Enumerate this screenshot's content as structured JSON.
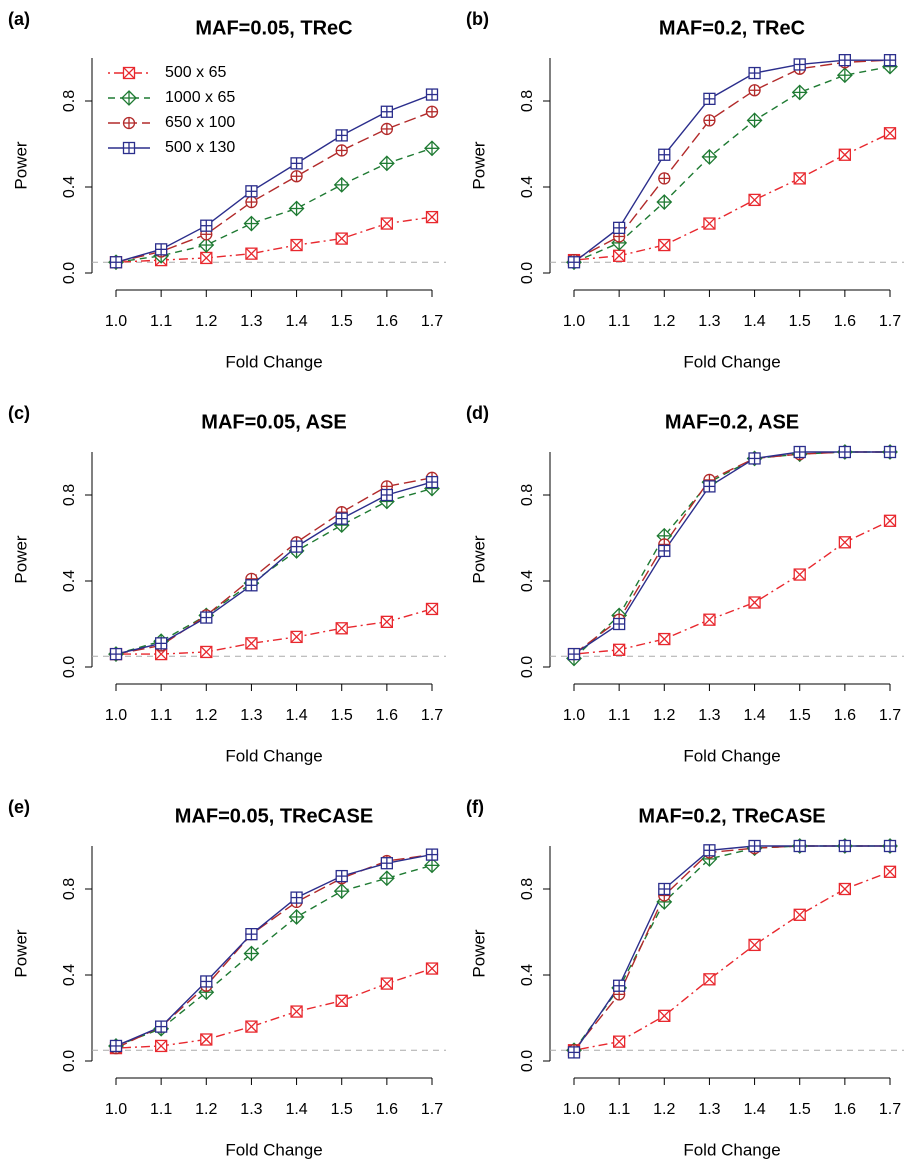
{
  "chart_data": [
    {
      "type": "line",
      "label": "(a)",
      "title": "MAF=0.05, TReC",
      "xlabel": "Fold Change",
      "ylabel": "Power",
      "x": [
        1.0,
        1.1,
        1.2,
        1.3,
        1.4,
        1.5,
        1.6,
        1.7
      ],
      "xlim": [
        1.0,
        1.7
      ],
      "xticks": [
        {
          "value": 1.0,
          "label": "1.0"
        },
        1.1,
        1.2,
        1.3,
        1.4,
        1.5,
        1.6,
        1.7
      ],
      "ylim": [
        0,
        1
      ],
      "yticks": [
        {
          "value": 0,
          "label": "0.0"
        },
        0.4,
        0.8
      ],
      "reference_line": 0.05,
      "legend": "top-left",
      "series": [
        {
          "name": "500 x 65",
          "color": "#e8282e",
          "linestyle": "dotdash",
          "marker": "square-x",
          "values": [
            0.05,
            0.06,
            0.07,
            0.09,
            0.13,
            0.16,
            0.23,
            0.26
          ]
        },
        {
          "name": "1000 x 65",
          "color": "#1e7a32",
          "linestyle": "dashed",
          "marker": "diamond-plus",
          "values": [
            0.05,
            0.08,
            0.13,
            0.23,
            0.3,
            0.41,
            0.51,
            0.58
          ]
        },
        {
          "name": "650 x 100",
          "color": "#b22a2a",
          "linestyle": "longdash",
          "marker": "circle-plus",
          "values": [
            0.05,
            0.1,
            0.18,
            0.33,
            0.45,
            0.57,
            0.67,
            0.75
          ]
        },
        {
          "name": "500 x 130",
          "color": "#2b2e8c",
          "linestyle": "solid",
          "marker": "square-plus",
          "values": [
            0.05,
            0.11,
            0.22,
            0.38,
            0.51,
            0.64,
            0.75,
            0.83
          ]
        }
      ]
    },
    {
      "type": "line",
      "label": "(b)",
      "title": "MAF=0.2, TReC",
      "xlabel": "Fold Change",
      "ylabel": "Power",
      "x": [
        1.0,
        1.1,
        1.2,
        1.3,
        1.4,
        1.5,
        1.6,
        1.7
      ],
      "xlim": [
        1.0,
        1.7
      ],
      "xticks": [
        {
          "value": 1.0,
          "label": "1.0"
        },
        1.1,
        1.2,
        1.3,
        1.4,
        1.5,
        1.6,
        1.7
      ],
      "ylim": [
        0,
        1
      ],
      "yticks": [
        {
          "value": 0,
          "label": "0.0"
        },
        0.4,
        0.8
      ],
      "reference_line": 0.05,
      "series": [
        {
          "name": "500 x 65",
          "color": "#e8282e",
          "linestyle": "dotdash",
          "marker": "square-x",
          "values": [
            0.06,
            0.08,
            0.13,
            0.23,
            0.34,
            0.44,
            0.55,
            0.65
          ]
        },
        {
          "name": "1000 x 65",
          "color": "#1e7a32",
          "linestyle": "dashed",
          "marker": "diamond-plus",
          "values": [
            0.05,
            0.14,
            0.33,
            0.54,
            0.71,
            0.84,
            0.92,
            0.96
          ]
        },
        {
          "name": "650 x 100",
          "color": "#b22a2a",
          "linestyle": "longdash",
          "marker": "circle-plus",
          "values": [
            0.06,
            0.17,
            0.44,
            0.71,
            0.85,
            0.95,
            0.98,
            0.99
          ]
        },
        {
          "name": "500 x 130",
          "color": "#2b2e8c",
          "linestyle": "solid",
          "marker": "square-plus",
          "values": [
            0.05,
            0.21,
            0.55,
            0.81,
            0.93,
            0.97,
            0.99,
            0.99
          ]
        }
      ]
    },
    {
      "type": "line",
      "label": "(c)",
      "title": "MAF=0.05, ASE",
      "xlabel": "Fold Change",
      "ylabel": "Power",
      "x": [
        1.0,
        1.1,
        1.2,
        1.3,
        1.4,
        1.5,
        1.6,
        1.7
      ],
      "xlim": [
        1.0,
        1.7
      ],
      "xticks": [
        {
          "value": 1.0,
          "label": "1.0"
        },
        1.1,
        1.2,
        1.3,
        1.4,
        1.5,
        1.6,
        1.7
      ],
      "ylim": [
        0,
        1
      ],
      "yticks": [
        {
          "value": 0,
          "label": "0.0"
        },
        0.4,
        0.8
      ],
      "reference_line": 0.05,
      "series": [
        {
          "name": "500 x 65",
          "color": "#e8282e",
          "linestyle": "dotdash",
          "marker": "square-x",
          "values": [
            0.06,
            0.06,
            0.07,
            0.11,
            0.14,
            0.18,
            0.21,
            0.27
          ]
        },
        {
          "name": "1000 x 65",
          "color": "#1e7a32",
          "linestyle": "dashed",
          "marker": "diamond-plus",
          "values": [
            0.06,
            0.12,
            0.24,
            0.39,
            0.54,
            0.66,
            0.77,
            0.83
          ]
        },
        {
          "name": "650 x 100",
          "color": "#b22a2a",
          "linestyle": "longdash",
          "marker": "circle-plus",
          "values": [
            0.06,
            0.1,
            0.24,
            0.41,
            0.58,
            0.72,
            0.84,
            0.88
          ]
        },
        {
          "name": "500 x 130",
          "color": "#2b2e8c",
          "linestyle": "solid",
          "marker": "square-plus",
          "values": [
            0.06,
            0.11,
            0.23,
            0.38,
            0.56,
            0.69,
            0.8,
            0.86
          ]
        }
      ]
    },
    {
      "type": "line",
      "label": "(d)",
      "title": "MAF=0.2, ASE",
      "xlabel": "Fold Change",
      "ylabel": "Power",
      "x": [
        1.0,
        1.1,
        1.2,
        1.3,
        1.4,
        1.5,
        1.6,
        1.7
      ],
      "xlim": [
        1.0,
        1.7
      ],
      "xticks": [
        {
          "value": 1.0,
          "label": "1.0"
        },
        1.1,
        1.2,
        1.3,
        1.4,
        1.5,
        1.6,
        1.7
      ],
      "ylim": [
        0,
        1
      ],
      "yticks": [
        {
          "value": 0,
          "label": "0.0"
        },
        0.4,
        0.8
      ],
      "reference_line": 0.05,
      "series": [
        {
          "name": "500 x 65",
          "color": "#e8282e",
          "linestyle": "dotdash",
          "marker": "square-x",
          "values": [
            0.06,
            0.08,
            0.13,
            0.22,
            0.3,
            0.43,
            0.58,
            0.68
          ]
        },
        {
          "name": "1000 x 65",
          "color": "#1e7a32",
          "linestyle": "dashed",
          "marker": "diamond-plus",
          "values": [
            0.04,
            0.24,
            0.61,
            0.86,
            0.97,
            0.99,
            1.0,
            1.0
          ]
        },
        {
          "name": "650 x 100",
          "color": "#b22a2a",
          "linestyle": "longdash",
          "marker": "circle-plus",
          "values": [
            0.06,
            0.22,
            0.57,
            0.87,
            0.97,
            0.99,
            1.0,
            1.0
          ]
        },
        {
          "name": "500 x 130",
          "color": "#2b2e8c",
          "linestyle": "solid",
          "marker": "square-plus",
          "values": [
            0.06,
            0.2,
            0.54,
            0.84,
            0.97,
            1.0,
            1.0,
            1.0
          ]
        }
      ]
    },
    {
      "type": "line",
      "label": "(e)",
      "title": "MAF=0.05, TReCASE",
      "xlabel": "Fold Change",
      "ylabel": "Power",
      "x": [
        1.0,
        1.1,
        1.2,
        1.3,
        1.4,
        1.5,
        1.6,
        1.7
      ],
      "xlim": [
        1.0,
        1.7
      ],
      "xticks": [
        {
          "value": 1.0,
          "label": "1.0"
        },
        1.1,
        1.2,
        1.3,
        1.4,
        1.5,
        1.6,
        1.7
      ],
      "ylim": [
        0,
        1
      ],
      "yticks": [
        {
          "value": 0,
          "label": "0.0"
        },
        0.4,
        0.8
      ],
      "reference_line": 0.05,
      "series": [
        {
          "name": "500 x 65",
          "color": "#e8282e",
          "linestyle": "dotdash",
          "marker": "square-x",
          "values": [
            0.06,
            0.07,
            0.1,
            0.16,
            0.23,
            0.28,
            0.36,
            0.43
          ]
        },
        {
          "name": "1000 x 65",
          "color": "#1e7a32",
          "linestyle": "dashed",
          "marker": "diamond-plus",
          "values": [
            0.07,
            0.15,
            0.32,
            0.5,
            0.67,
            0.79,
            0.85,
            0.91
          ]
        },
        {
          "name": "650 x 100",
          "color": "#b22a2a",
          "linestyle": "longdash",
          "marker": "circle-plus",
          "values": [
            0.06,
            0.16,
            0.35,
            0.59,
            0.74,
            0.85,
            0.93,
            0.96
          ]
        },
        {
          "name": "500 x 130",
          "color": "#2b2e8c",
          "linestyle": "solid",
          "marker": "square-plus",
          "values": [
            0.07,
            0.16,
            0.37,
            0.59,
            0.76,
            0.86,
            0.92,
            0.96
          ]
        }
      ]
    },
    {
      "type": "line",
      "label": "(f)",
      "title": "MAF=0.2, TReCASE",
      "xlabel": "Fold Change",
      "ylabel": "Power",
      "x": [
        1.0,
        1.1,
        1.2,
        1.3,
        1.4,
        1.5,
        1.6,
        1.7
      ],
      "xlim": [
        1.0,
        1.7
      ],
      "xticks": [
        {
          "value": 1.0,
          "label": "1.0"
        },
        1.1,
        1.2,
        1.3,
        1.4,
        1.5,
        1.6,
        1.7
      ],
      "ylim": [
        0,
        1
      ],
      "yticks": [
        {
          "value": 0,
          "label": "0.0"
        },
        0.4,
        0.8
      ],
      "reference_line": 0.05,
      "series": [
        {
          "name": "500 x 65",
          "color": "#e8282e",
          "linestyle": "dotdash",
          "marker": "square-x",
          "values": [
            0.05,
            0.09,
            0.21,
            0.38,
            0.54,
            0.68,
            0.8,
            0.88
          ]
        },
        {
          "name": "1000 x 65",
          "color": "#1e7a32",
          "linestyle": "dashed",
          "marker": "diamond-plus",
          "values": [
            0.05,
            0.34,
            0.74,
            0.94,
            0.99,
            1.0,
            1.0,
            1.0
          ]
        },
        {
          "name": "650 x 100",
          "color": "#b22a2a",
          "linestyle": "longdash",
          "marker": "circle-plus",
          "values": [
            0.05,
            0.31,
            0.77,
            0.97,
            0.99,
            1.0,
            1.0,
            1.0
          ]
        },
        {
          "name": "500 x 130",
          "color": "#2b2e8c",
          "linestyle": "solid",
          "marker": "square-plus",
          "values": [
            0.04,
            0.35,
            0.8,
            0.98,
            1.0,
            1.0,
            1.0,
            1.0
          ]
        }
      ]
    }
  ]
}
